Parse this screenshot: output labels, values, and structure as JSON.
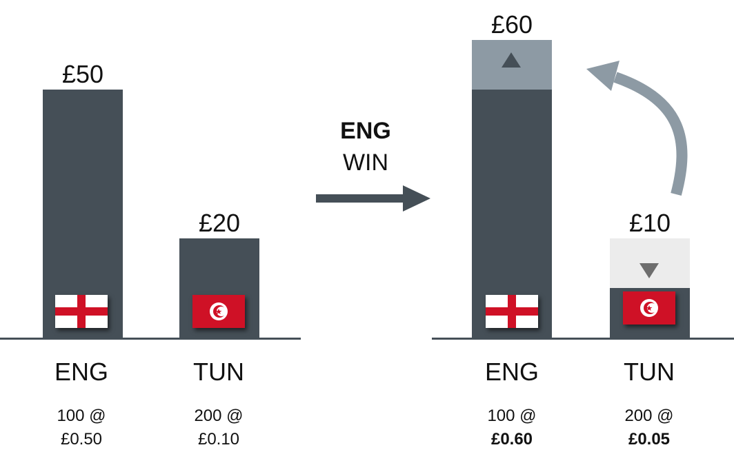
{
  "colors": {
    "bar": "#454f57",
    "increase": "#8d9aa4",
    "decrease": "#ececec",
    "arrow": "#8d9aa4",
    "flag_red": "#cf1126"
  },
  "transition": {
    "line1": "ENG",
    "line2": "WIN"
  },
  "chart_data": [
    {
      "type": "bar",
      "categories": [
        "ENG",
        "TUN"
      ],
      "values": [
        50,
        20
      ],
      "value_labels": [
        "£50",
        "£20"
      ],
      "notes": [
        {
          "qty": "100 @",
          "price": "£0.50"
        },
        {
          "qty": "200 @",
          "price": "£0.10"
        }
      ],
      "flags": [
        "england-flag",
        "tunisia-flag"
      ],
      "ylim": [
        0,
        60
      ]
    },
    {
      "type": "bar",
      "categories": [
        "ENG",
        "TUN"
      ],
      "values": [
        60,
        10
      ],
      "previous_values": [
        50,
        20
      ],
      "value_labels": [
        "£60",
        "£10"
      ],
      "notes": [
        {
          "qty": "100 @",
          "price": "£0.60"
        },
        {
          "qty": "200 @",
          "price": "£0.05"
        }
      ],
      "flags": [
        "england-flag",
        "tunisia-flag"
      ],
      "ylim": [
        0,
        60
      ]
    }
  ]
}
